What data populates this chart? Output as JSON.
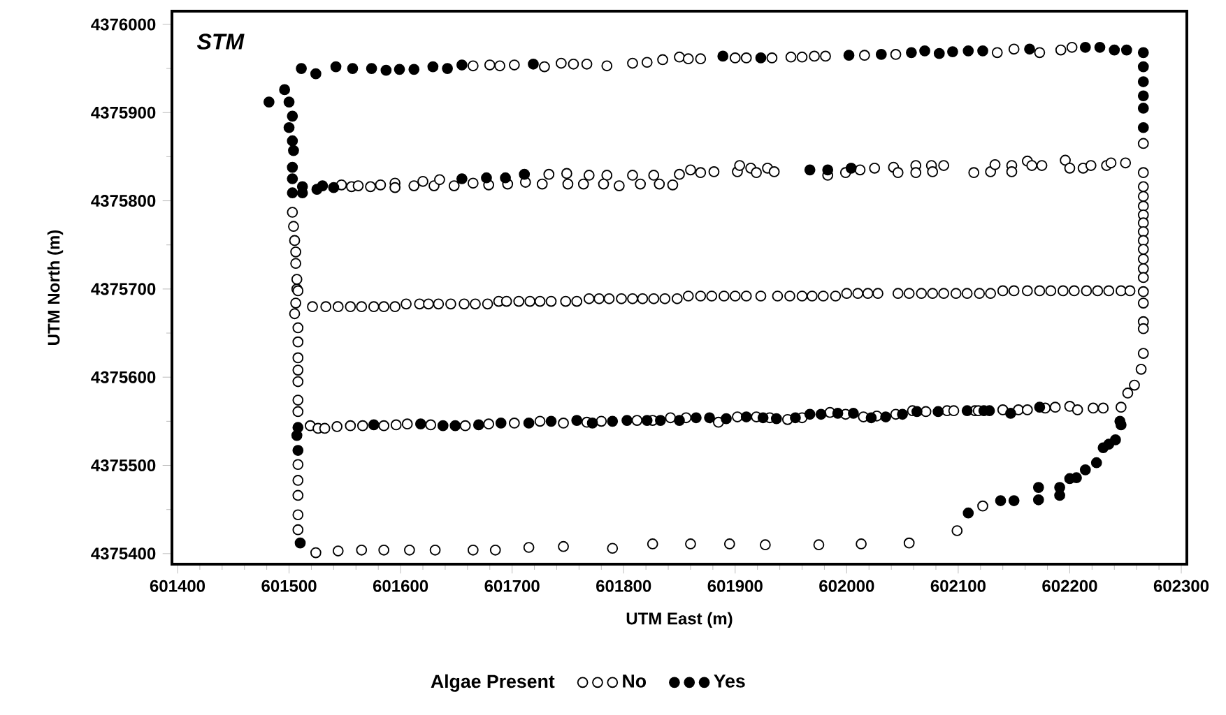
{
  "chart_data": {
    "type": "scatter",
    "xlabel": "UTM East (m)",
    "ylabel": "UTM North (m)",
    "legend_title": "Algae Present",
    "legend": "bottom",
    "marker": "circle",
    "annotations": [
      "STM"
    ],
    "xlim": [
      601395,
      602305
    ],
    "ylim": [
      4375388,
      4376015
    ],
    "xticks": [
      601400,
      601500,
      601600,
      601700,
      601800,
      601900,
      602000,
      602100,
      602200,
      602300
    ],
    "yticks": [
      4375400,
      4375500,
      4375600,
      4375700,
      4375800,
      4375900,
      4376000
    ],
    "series": [
      {
        "name": "No",
        "color": "#ffffff",
        "x": [
          601665,
          601680,
          601689,
          601702,
          601729,
          601744,
          601755,
          601767,
          601785,
          601808,
          601821,
          601835,
          601850,
          601858,
          601869,
          601900,
          601910,
          601933,
          601950,
          601960,
          601971,
          601981,
          602016,
          602044,
          602135,
          602150,
          602173,
          602192,
          602202,
          601547,
          601556,
          601562,
          601573,
          601582,
          601595,
          601595,
          601612,
          601620,
          601630,
          601635,
          601648,
          601665,
          601679,
          601696,
          601712,
          601727,
          601733,
          601749,
          601750,
          601769,
          601764,
          601785,
          601782,
          601796,
          601808,
          601815,
          601827,
          601832,
          601844,
          601850,
          601860,
          601869,
          601881,
          601902,
          601904,
          601914,
          601919,
          601929,
          601935,
          601983,
          601999,
          602012,
          602025,
          602042,
          602046,
          602062,
          602062,
          602076,
          602077,
          602087,
          602114,
          602129,
          602133,
          602148,
          602148,
          602162,
          602166,
          602175,
          602196,
          602200,
          602212,
          602219,
          602233,
          602237,
          602250,
          602266,
          602266,
          602266,
          602266,
          602266,
          602266,
          602266,
          602266,
          602266,
          602266,
          602266,
          602266,
          602266,
          602266,
          602266,
          602266,
          602266,
          602266,
          602264,
          602258,
          602252,
          602246,
          601503,
          601504,
          601505,
          601506,
          601506,
          601507,
          601507,
          601508,
          601506,
          601505,
          601508,
          601508,
          601508,
          601508,
          601508,
          601508,
          601508,
          601508,
          601508,
          601508,
          601508,
          601508,
          602122,
          602099,
          601524,
          601544,
          601565,
          601585,
          601608,
          601631,
          601665,
          601685,
          601715,
          601746,
          601790,
          601826,
          601860,
          601895,
          601927,
          601975,
          602013,
          602056,
          601521,
          601533,
          601544,
          601555,
          601565,
          601576,
          601585,
          601595,
          601605,
          601617,
          601625,
          601634,
          601645,
          601657,
          601667,
          601678,
          601688,
          601695,
          601706,
          601716,
          601725,
          601735,
          601748,
          601758,
          601769,
          601778,
          601787,
          601798,
          601808,
          601817,
          601827,
          601837,
          601848,
          601858,
          601869,
          601879,
          601890,
          601900,
          601910,
          601923,
          601938,
          601949,
          601960,
          601969,
          601979,
          601990,
          602000,
          602010,
          602019,
          602028,
          602046,
          602056,
          602067,
          602077,
          602087,
          602098,
          602108,
          602119,
          602129,
          602140,
          602150,
          602162,
          602173,
          602183,
          602194,
          602204,
          602215,
          602225,
          602235,
          602246,
          602254,
          601519,
          601526,
          601532,
          601543,
          601555,
          601566,
          601585,
          601596,
          601606,
          601627,
          601658,
          601679,
          601702,
          601725,
          601746,
          601767,
          601780,
          601812,
          601826,
          601842,
          601856,
          601885,
          601902,
          601919,
          601931,
          601947,
          601960,
          601985,
          601999,
          602015,
          602027,
          602044,
          602059,
          602071,
          602090,
          602096,
          602115,
          602118,
          602140,
          602154,
          602162,
          602178,
          602187,
          602200,
          602207,
          602221,
          602230
        ],
        "values": [
          4375953,
          4375954,
          4375953,
          4375954,
          4375952,
          4375956,
          4375955,
          4375955,
          4375953,
          4375956,
          4375957,
          4375960,
          4375963,
          4375961,
          4375961,
          4375962,
          4375962,
          4375962,
          4375963,
          4375963,
          4375964,
          4375964,
          4375965,
          4375966,
          4375968,
          4375972,
          4375968,
          4375971,
          4375974,
          4375818,
          4375816,
          4375817,
          4375816,
          4375818,
          4375820,
          4375815,
          4375817,
          4375822,
          4375817,
          4375824,
          4375817,
          4375820,
          4375818,
          4375819,
          4375821,
          4375819,
          4375830,
          4375831,
          4375819,
          4375829,
          4375819,
          4375829,
          4375819,
          4375817,
          4375829,
          4375819,
          4375829,
          4375819,
          4375818,
          4375830,
          4375835,
          4375832,
          4375833,
          4375833,
          4375840,
          4375837,
          4375832,
          4375837,
          4375833,
          4375829,
          4375832,
          4375835,
          4375837,
          4375838,
          4375832,
          4375840,
          4375832,
          4375840,
          4375833,
          4375840,
          4375832,
          4375833,
          4375841,
          4375840,
          4375833,
          4375845,
          4375840,
          4375840,
          4375846,
          4375837,
          4375837,
          4375840,
          4375840,
          4375843,
          4375843,
          4375865,
          4375832,
          4375816,
          4375805,
          4375794,
          4375784,
          4375775,
          4375765,
          4375755,
          4375745,
          4375734,
          4375723,
          4375713,
          4375697,
          4375684,
          4375663,
          4375655,
          4375627,
          4375609,
          4375591,
          4375582,
          4375566,
          4375787,
          4375771,
          4375755,
          4375742,
          4375729,
          4375711,
          4375700,
          4375698,
          4375684,
          4375672,
          4375656,
          4375640,
          4375622,
          4375608,
          4375595,
          4375574,
          4375561,
          4375501,
          4375483,
          4375466,
          4375444,
          4375427,
          4375454,
          4375426,
          4375401,
          4375403,
          4375404,
          4375404,
          4375404,
          4375404,
          4375404,
          4375404,
          4375407,
          4375408,
          4375406,
          4375411,
          4375411,
          4375411,
          4375410,
          4375410,
          4375411,
          4375412,
          4375680,
          4375680,
          4375680,
          4375680,
          4375680,
          4375680,
          4375680,
          4375680,
          4375683,
          4375683,
          4375683,
          4375683,
          4375683,
          4375683,
          4375683,
          4375683,
          4375686,
          4375686,
          4375686,
          4375686,
          4375686,
          4375686,
          4375686,
          4375686,
          4375689,
          4375689,
          4375689,
          4375689,
          4375689,
          4375689,
          4375689,
          4375689,
          4375689,
          4375692,
          4375692,
          4375692,
          4375692,
          4375692,
          4375692,
          4375692,
          4375692,
          4375692,
          4375692,
          4375692,
          4375692,
          4375692,
          4375695,
          4375695,
          4375695,
          4375695,
          4375695,
          4375695,
          4375695,
          4375695,
          4375695,
          4375695,
          4375695,
          4375695,
          4375695,
          4375698,
          4375698,
          4375698,
          4375698,
          4375698,
          4375698,
          4375698,
          4375698,
          4375698,
          4375698,
          4375698,
          4375698,
          4375545,
          4375542,
          4375542,
          4375544,
          4375545,
          4375545,
          4375545,
          4375546,
          4375547,
          4375546,
          4375545,
          4375547,
          4375548,
          4375550,
          4375548,
          4375549,
          4375550,
          4375551,
          4375551,
          4375554,
          4375554,
          4375549,
          4375555,
          4375555,
          4375554,
          4375552,
          4375554,
          4375560,
          4375558,
          4375555,
          4375556,
          4375558,
          4375562,
          4375561,
          4375562,
          4375562,
          4375562,
          4375562,
          4375563,
          4375563,
          4375563,
          4375565,
          4375566,
          4375567,
          4375563,
          4375565,
          4375565
        ]
      },
      {
        "name": "Yes",
        "color": "#000000",
        "x": [
          601511,
          601524,
          601542,
          601557,
          601574,
          601587,
          601599,
          601612,
          601629,
          601642,
          601655,
          601719,
          601889,
          601923,
          602002,
          602031,
          602058,
          602070,
          602083,
          602095,
          602109,
          602122,
          602164,
          602214,
          602227,
          602240,
          602251,
          602266,
          602266,
          602266,
          602266,
          602266,
          602266,
          601482,
          601496,
          601500,
          601503,
          601500,
          601503,
          601504,
          601503,
          601503,
          601503,
          601512,
          601512,
          601525,
          601530,
          601540,
          601655,
          601677,
          601694,
          601711,
          601967,
          601983,
          602004,
          601508,
          601507,
          601508,
          601510,
          602245,
          602246,
          602241,
          602235,
          602230,
          602224,
          602214,
          602206,
          602200,
          602191,
          602191,
          602172,
          602172,
          602150,
          602138,
          602109,
          601576,
          601618,
          601638,
          601649,
          601670,
          601690,
          601715,
          601735,
          601758,
          601772,
          601790,
          601803,
          601821,
          601833,
          601850,
          601865,
          601877,
          601892,
          601910,
          601925,
          601937,
          601954,
          601967,
          601977,
          601992,
          602006,
          602022,
          602035,
          602050,
          602063,
          602082,
          602108,
          602123,
          602128,
          602147,
          602173
        ],
        "values": [
          4375950,
          4375944,
          4375952,
          4375950,
          4375950,
          4375948,
          4375949,
          4375949,
          4375952,
          4375950,
          4375954,
          4375955,
          4375964,
          4375962,
          4375965,
          4375966,
          4375968,
          4375970,
          4375967,
          4375969,
          4375970,
          4375970,
          4375972,
          4375974,
          4375974,
          4375971,
          4375971,
          4375968,
          4375952,
          4375935,
          4375919,
          4375905,
          4375883,
          4375912,
          4375926,
          4375912,
          4375896,
          4375883,
          4375868,
          4375857,
          4375838,
          4375825,
          4375809,
          4375816,
          4375809,
          4375813,
          4375817,
          4375815,
          4375825,
          4375826,
          4375826,
          4375830,
          4375835,
          4375835,
          4375837,
          4375517,
          4375534,
          4375543,
          4375412,
          4375550,
          4375546,
          4375529,
          4375524,
          4375520,
          4375503,
          4375495,
          4375486,
          4375485,
          4375475,
          4375466,
          4375475,
          4375461,
          4375460,
          4375460,
          4375446,
          4375546,
          4375547,
          4375545,
          4375545,
          4375546,
          4375548,
          4375548,
          4375550,
          4375551,
          4375548,
          4375550,
          4375551,
          4375551,
          4375551,
          4375551,
          4375554,
          4375554,
          4375553,
          4375555,
          4375554,
          4375553,
          4375554,
          4375558,
          4375558,
          4375559,
          4375559,
          4375554,
          4375555,
          4375558,
          4375561,
          4375561,
          4375562,
          4375562,
          4375562,
          4375559,
          4375566
        ]
      }
    ]
  }
}
